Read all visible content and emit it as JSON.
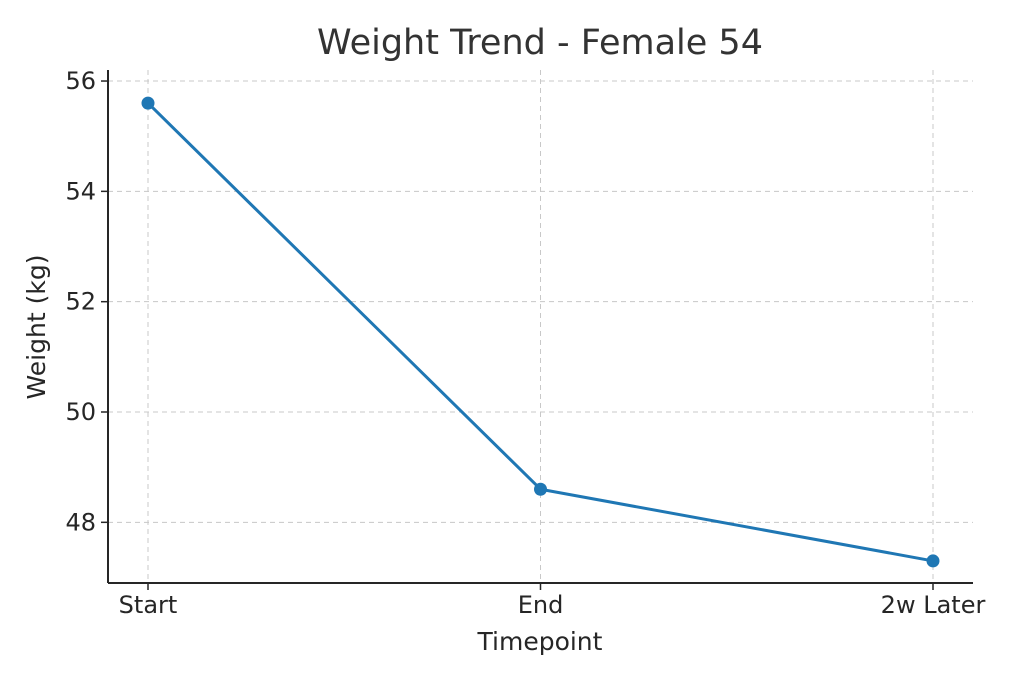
{
  "chart_data": {
    "type": "line",
    "title": "Weight Trend - Female 54",
    "xlabel": "Timepoint",
    "ylabel": "Weight (kg)",
    "categories": [
      "Start",
      "End",
      "2w Later"
    ],
    "series": [
      {
        "values": [
          55.6,
          48.6,
          47.3
        ],
        "color": "#1f77b4"
      }
    ],
    "ylim": [
      46.9,
      56.2
    ],
    "yticks": [
      48,
      50,
      52,
      54,
      56
    ],
    "grid": true,
    "marker": "circle"
  }
}
